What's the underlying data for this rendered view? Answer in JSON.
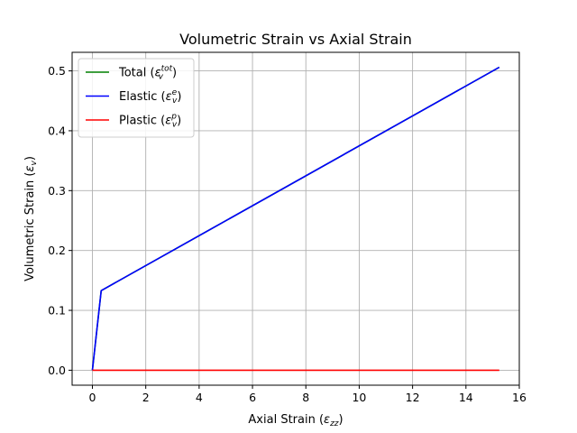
{
  "chart_data": {
    "type": "line",
    "title": "Volumetric Strain vs Axial Strain",
    "xlabel": "Axial Strain (εzz)",
    "ylabel": "Volumetric Strain (εv)",
    "xlim": [
      -0.76,
      16.0
    ],
    "ylim": [
      -0.025,
      0.531
    ],
    "grid": true,
    "legend_position": "top-left",
    "x_ticks": [
      0,
      2,
      4,
      6,
      8,
      10,
      12,
      14,
      16
    ],
    "y_ticks": [
      0.0,
      0.1,
      0.2,
      0.3,
      0.4,
      0.5
    ],
    "x_tick_labels": [
      "0",
      "2",
      "4",
      "6",
      "8",
      "10",
      "12",
      "14",
      "16"
    ],
    "y_tick_labels": [
      "0.0",
      "0.1",
      "0.2",
      "0.3",
      "0.4",
      "0.5"
    ],
    "series": [
      {
        "name": "Total (εv^tot)",
        "color": "#008000",
        "x": [
          0.0,
          0.33,
          15.25
        ],
        "y": [
          0.0,
          0.133,
          0.506
        ]
      },
      {
        "name": "Elastic (εv^e)",
        "color": "#0000ff",
        "x": [
          0.0,
          0.33,
          15.25
        ],
        "y": [
          0.0,
          0.133,
          0.506
        ]
      },
      {
        "name": "Plastic (εv^p)",
        "color": "#ff0000",
        "x": [
          0.0,
          15.25
        ],
        "y": [
          0.0,
          0.0
        ]
      }
    ],
    "legend": [
      {
        "base": "Total (",
        "sym": "ε",
        "sub": "v",
        "sup": "tot",
        "close": ")"
      },
      {
        "base": "Elastic (",
        "sym": "ε",
        "sub": "v",
        "sup": "e",
        "close": ")"
      },
      {
        "base": "Plastic (",
        "sym": "ε",
        "sub": "v",
        "sup": "p",
        "close": ")"
      }
    ],
    "axis_labels": {
      "x": {
        "base": "Axial Strain (",
        "sym": "ε",
        "sub": "zz",
        "close": ")"
      },
      "y": {
        "base": "Volumetric Strain (",
        "sym": "ε",
        "sub": "v",
        "close": ")"
      }
    }
  }
}
